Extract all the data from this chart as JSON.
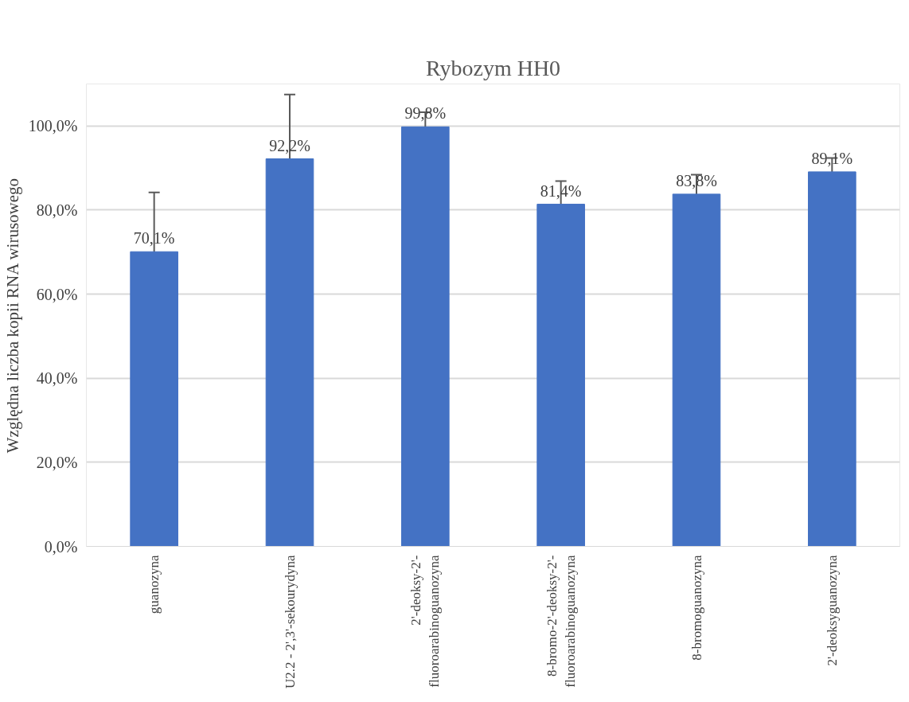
{
  "chart_data": {
    "type": "bar",
    "title": "Rybozym HH0",
    "ylabel": "Względna liczba kopii RNA wirusowego",
    "categories": [
      "guanozyna",
      "U2.2 - 2',3'-sekourydyna",
      "2'-deoksy-2'-fluoroarabinoguanozyna",
      "8-bromo-2'-deoksy-2'-fluoroarabinoguanozyna",
      "8-bromoguanozyna",
      "2'-deoksyguanozyna"
    ],
    "values": [
      70.1,
      92.2,
      99.8,
      81.4,
      83.8,
      89.1
    ],
    "errors": [
      14.1,
      15.3,
      3.5,
      5.5,
      4.6,
      3.3
    ],
    "value_labels": [
      "70,1%",
      "92,2%",
      "99,8%",
      "81,4%",
      "83,8%",
      "89,1%"
    ],
    "color": "#4472c4",
    "ylim": [
      0,
      110
    ],
    "yticks": [
      {
        "value": 0,
        "label": "0,0%"
      },
      {
        "value": 20,
        "label": "20,0%"
      },
      {
        "value": 40,
        "label": "40,0%"
      },
      {
        "value": 60,
        "label": "60,0%"
      },
      {
        "value": 80,
        "label": "80,0%"
      },
      {
        "value": 100,
        "label": "100,0%"
      }
    ],
    "grid": "y"
  }
}
